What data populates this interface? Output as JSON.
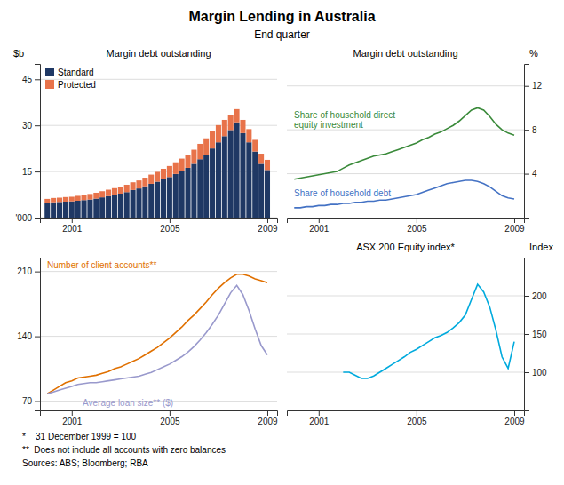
{
  "title": "Margin Lending in Australia",
  "subtitle": "End quarter",
  "footnotes": [
    "*    31 December 1999 = 100",
    "**  Does not include all accounts with zero balances",
    "Sources: ABS; Bloomberg; RBA"
  ],
  "chart_data": [
    {
      "type": "bar",
      "stacked": true,
      "title": "Margin debt outstanding",
      "ylabel": "$b",
      "x": [
        2000.0,
        2000.25,
        2000.5,
        2000.75,
        2001.0,
        2001.25,
        2001.5,
        2001.75,
        2002.0,
        2002.25,
        2002.5,
        2002.75,
        2003.0,
        2003.25,
        2003.5,
        2003.75,
        2004.0,
        2004.25,
        2004.5,
        2004.75,
        2005.0,
        2005.25,
        2005.5,
        2005.75,
        2006.0,
        2006.25,
        2006.5,
        2006.75,
        2007.0,
        2007.25,
        2007.5,
        2007.75,
        2008.0,
        2008.25,
        2008.5,
        2008.75,
        2009.0
      ],
      "series": [
        {
          "name": "Standard",
          "color": "#1f3864",
          "values": [
            4.8,
            5.0,
            5.1,
            5.2,
            5.3,
            5.5,
            5.7,
            5.9,
            6.2,
            6.6,
            7.0,
            7.4,
            7.8,
            8.3,
            9.0,
            9.5,
            10.2,
            11.0,
            11.7,
            12.5,
            13.2,
            14.2,
            15.2,
            16.2,
            17.5,
            19.0,
            20.5,
            22.5,
            24.5,
            26.5,
            28.5,
            31.0,
            27.5,
            24.5,
            21.5,
            17.5,
            15.5
          ]
        },
        {
          "name": "Protected",
          "color": "#e8734a",
          "values": [
            1.3,
            1.4,
            1.4,
            1.5,
            1.5,
            1.6,
            1.7,
            1.8,
            1.9,
            2.0,
            2.1,
            2.2,
            2.3,
            2.4,
            2.5,
            2.6,
            2.8,
            3.0,
            3.2,
            3.4,
            3.6,
            3.8,
            4.0,
            4.3,
            4.6,
            5.0,
            5.3,
            5.8,
            5.6,
            5.3,
            4.8,
            4.3,
            4.3,
            4.3,
            3.8,
            3.3,
            3.3
          ]
        }
      ],
      "xlim": [
        1999.7,
        2009.4
      ],
      "xticks": [
        2001,
        2005,
        2009
      ],
      "ylim": [
        0,
        50
      ],
      "yticks": [
        {
          "value": 0,
          "label": "'000"
        },
        15,
        30,
        45
      ],
      "grid": true,
      "legend": "upper left"
    },
    {
      "type": "line",
      "title": "Margin debt outstanding",
      "ylabel": "%",
      "x": [
        2000.0,
        2000.25,
        2000.5,
        2000.75,
        2001.0,
        2001.25,
        2001.5,
        2001.75,
        2002.0,
        2002.25,
        2002.5,
        2002.75,
        2003.0,
        2003.25,
        2003.5,
        2003.75,
        2004.0,
        2004.25,
        2004.5,
        2004.75,
        2005.0,
        2005.25,
        2005.5,
        2005.75,
        2006.0,
        2006.25,
        2006.5,
        2006.75,
        2007.0,
        2007.25,
        2007.5,
        2007.75,
        2008.0,
        2008.25,
        2008.5,
        2008.75,
        2009.0
      ],
      "series": [
        {
          "name": "Share of household direct\nequity investment",
          "color": "#3a8a3a",
          "values": [
            3.5,
            3.6,
            3.7,
            3.8,
            3.9,
            4.0,
            4.1,
            4.2,
            4.5,
            4.8,
            5.0,
            5.2,
            5.4,
            5.6,
            5.7,
            5.8,
            6.0,
            6.2,
            6.4,
            6.6,
            6.8,
            7.1,
            7.3,
            7.6,
            7.8,
            8.1,
            8.4,
            8.8,
            9.3,
            9.8,
            10.0,
            9.8,
            9.2,
            8.5,
            8.0,
            7.7,
            7.5
          ]
        },
        {
          "name": "Share of household debt",
          "color": "#4472c4",
          "values": [
            0.9,
            0.9,
            1.0,
            1.0,
            1.1,
            1.1,
            1.2,
            1.2,
            1.3,
            1.3,
            1.4,
            1.4,
            1.5,
            1.5,
            1.6,
            1.6,
            1.7,
            1.8,
            1.9,
            2.0,
            2.1,
            2.3,
            2.5,
            2.7,
            2.9,
            3.1,
            3.2,
            3.3,
            3.4,
            3.4,
            3.3,
            3.1,
            2.8,
            2.4,
            2.0,
            1.8,
            1.7
          ]
        }
      ],
      "xlim": [
        1999.7,
        2009.4
      ],
      "xticks": [
        2001,
        2005,
        2009
      ],
      "ylim": [
        0,
        14
      ],
      "yticks": [
        4,
        8,
        12
      ],
      "grid": true
    },
    {
      "type": "line",
      "x": [
        2000.0,
        2000.25,
        2000.5,
        2000.75,
        2001.0,
        2001.25,
        2001.5,
        2001.75,
        2002.0,
        2002.25,
        2002.5,
        2002.75,
        2003.0,
        2003.25,
        2003.5,
        2003.75,
        2004.0,
        2004.25,
        2004.5,
        2004.75,
        2005.0,
        2005.25,
        2005.5,
        2005.75,
        2006.0,
        2006.25,
        2006.5,
        2006.75,
        2007.0,
        2007.25,
        2007.5,
        2007.75,
        2008.0,
        2008.25,
        2008.5,
        2008.75,
        2009.0
      ],
      "series": [
        {
          "name": "Number of client accounts**",
          "color": "#e07000",
          "values": [
            78,
            82,
            86,
            90,
            92,
            95,
            96,
            97,
            98,
            100,
            102,
            105,
            107,
            110,
            113,
            116,
            120,
            124,
            128,
            133,
            138,
            144,
            150,
            157,
            163,
            170,
            177,
            185,
            192,
            198,
            203,
            207,
            207,
            205,
            202,
            200,
            198
          ]
        },
        {
          "name": "Average loan size** ($)",
          "color": "#9999cc",
          "values": [
            78,
            80,
            82,
            84,
            86,
            88,
            89,
            90,
            90,
            91,
            92,
            93,
            94,
            95,
            96,
            97,
            99,
            101,
            104,
            107,
            110,
            114,
            118,
            123,
            129,
            136,
            144,
            153,
            163,
            175,
            187,
            195,
            185,
            168,
            148,
            130,
            120
          ]
        }
      ],
      "xlim": [
        1999.7,
        2009.4
      ],
      "xticks": [
        2001,
        2005,
        2009
      ],
      "ylim": [
        60,
        225
      ],
      "yticks": [
        70,
        140,
        210
      ],
      "grid": true
    },
    {
      "type": "line",
      "title": "ASX 200 Equity index*",
      "ylabel": "Index",
      "x": [
        2002.0,
        2002.25,
        2002.5,
        2002.75,
        2003.0,
        2003.25,
        2003.5,
        2003.75,
        2004.0,
        2004.25,
        2004.5,
        2004.75,
        2005.0,
        2005.25,
        2005.5,
        2005.75,
        2006.0,
        2006.25,
        2006.5,
        2006.75,
        2007.0,
        2007.25,
        2007.5,
        2007.75,
        2008.0,
        2008.25,
        2008.5,
        2008.75,
        2009.0
      ],
      "values": [
        100,
        100,
        96,
        92,
        92,
        95,
        100,
        105,
        110,
        115,
        120,
        126,
        130,
        135,
        140,
        145,
        148,
        152,
        158,
        165,
        175,
        195,
        215,
        205,
        185,
        155,
        120,
        105,
        140
      ],
      "color": "#00aadd",
      "xlim": [
        1999.7,
        2009.4
      ],
      "xticks": [
        2001,
        2005,
        2009
      ],
      "ylim": [
        50,
        250
      ],
      "yticks": [
        100,
        150,
        200
      ],
      "grid": true
    }
  ]
}
